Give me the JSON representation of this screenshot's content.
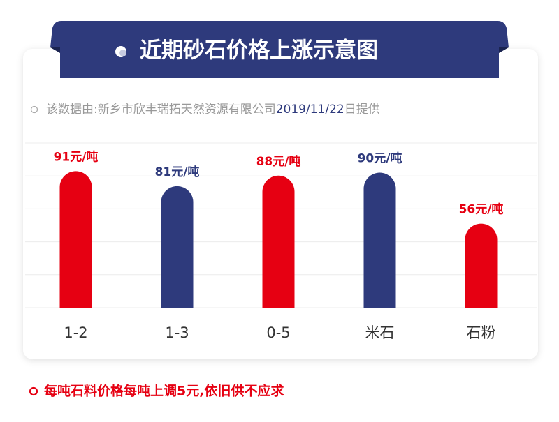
{
  "chart_data": {
    "type": "bar",
    "title": "近期砂石价格上涨示意图",
    "source": {
      "text": "该数据由:新乡市欣丰瑞拓天然资源有限公司",
      "date": "2019/11/22",
      "suffix": "日提供"
    },
    "categories": [
      "1-2",
      "1-3",
      "0-5",
      "米石",
      "石粉"
    ],
    "values": [
      91,
      81,
      88,
      90,
      56
    ],
    "value_labels": [
      "91元/吨",
      "81元/吨",
      "88元/吨",
      "90元/吨",
      "56元/吨"
    ],
    "colors": [
      "#e60012",
      "#2e3a7c",
      "#e60012",
      "#2e3a7c",
      "#e60012"
    ],
    "note": "每吨石料价格每吨上调5元,依旧供不应求"
  }
}
